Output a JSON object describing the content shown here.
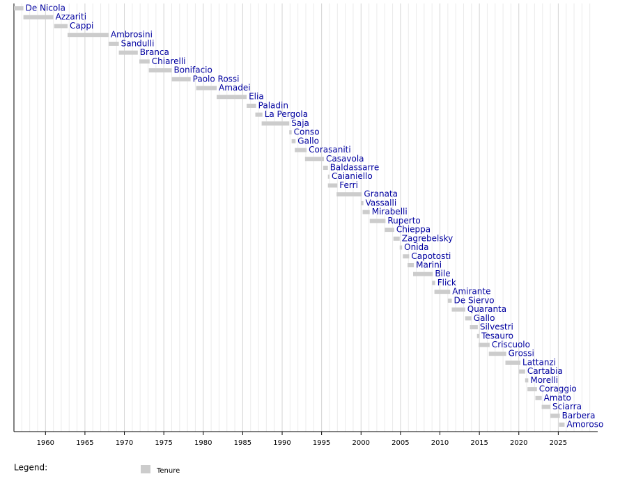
{
  "chart_data": {
    "type": "timeline",
    "categories": [
      "De Nicola",
      "Azzariti",
      "Cappi",
      "Ambrosini",
      "Sandulli",
      "Branca",
      "Chiarelli",
      "Bonifacio",
      "Paolo Rossi",
      "Amadei",
      "Elia",
      "Paladin",
      "La Pergola",
      "Saja",
      "Conso",
      "Gallo",
      "Corasaniti",
      "Casavola",
      "Baldassarre",
      "Caianiello",
      "Ferri",
      "Granata",
      "Vassalli",
      "Mirabelli",
      "Ruperto",
      "Chieppa",
      "Zagrebelsky",
      "Onida",
      "Capotosti",
      "Marini",
      "Bile",
      "Flick",
      "Amirante",
      "De Siervo",
      "Quaranta",
      "Gallo",
      "Silvestri",
      "Tesauro",
      "Criscuolo",
      "Grossi",
      "Lattanzi",
      "Cartabia",
      "Morelli",
      "Coraggio",
      "Amato",
      "Sciarra",
      "Barbera",
      "Amoroso"
    ],
    "series": [
      {
        "name": "Tenure",
        "color": "#cccccc",
        "start": [
          1956.0,
          1957.2,
          1961.1,
          1962.8,
          1968.0,
          1969.3,
          1971.9,
          1973.1,
          1976.0,
          1979.1,
          1981.7,
          1985.5,
          1986.6,
          1987.4,
          1990.9,
          1991.2,
          1991.6,
          1992.9,
          1995.2,
          1995.8,
          1995.8,
          1996.9,
          2000.0,
          2000.2,
          2001.1,
          2003.0,
          2004.1,
          2004.9,
          2005.3,
          2005.9,
          2006.6,
          2009.0,
          2009.3,
          2011.0,
          2011.5,
          2013.2,
          2013.8,
          2014.7,
          2014.9,
          2016.2,
          2018.3,
          2020.0,
          2020.8,
          2021.1,
          2022.1,
          2022.9,
          2024.0,
          2025.1
        ],
        "end": [
          1957.2,
          1961.0,
          1962.8,
          1968.0,
          1969.3,
          1971.7,
          1973.2,
          1976.0,
          1978.4,
          1981.7,
          1985.5,
          1986.7,
          1987.5,
          1990.9,
          1991.2,
          1991.7,
          1993.1,
          1995.3,
          1995.8,
          1996.0,
          1997.0,
          2000.1,
          2000.3,
          2001.1,
          2003.1,
          2004.2,
          2004.9,
          2005.2,
          2006.1,
          2006.7,
          2009.1,
          2009.4,
          2011.3,
          2011.5,
          2013.2,
          2014.0,
          2014.8,
          2015.0,
          2016.3,
          2018.4,
          2020.2,
          2020.8,
          2021.2,
          2022.3,
          2022.9,
          2024.0,
          2025.2,
          2025.8
        ]
      }
    ],
    "xlim": [
      1956,
      2030
    ],
    "xticks": [
      1960,
      1965,
      1970,
      1975,
      1980,
      1985,
      1990,
      1995,
      2000,
      2005,
      2010,
      2015,
      2020,
      2025
    ],
    "minor_xticks": [
      1956,
      1957,
      1958,
      1959,
      1961,
      1962,
      1963,
      1964,
      1966,
      1967,
      1968,
      1969,
      1971,
      1972,
      1973,
      1974,
      1976,
      1977,
      1978,
      1979,
      1981,
      1982,
      1983,
      1984,
      1986,
      1987,
      1988,
      1989,
      1991,
      1992,
      1993,
      1994,
      1996,
      1997,
      1998,
      1999,
      2001,
      2002,
      2003,
      2004,
      2006,
      2007,
      2008,
      2009,
      2011,
      2012,
      2013,
      2014,
      2016,
      2017,
      2018,
      2019,
      2021,
      2022,
      2023,
      2024,
      2026,
      2027,
      2028,
      2029
    ],
    "grid": true,
    "legend_title": "Legend:"
  }
}
